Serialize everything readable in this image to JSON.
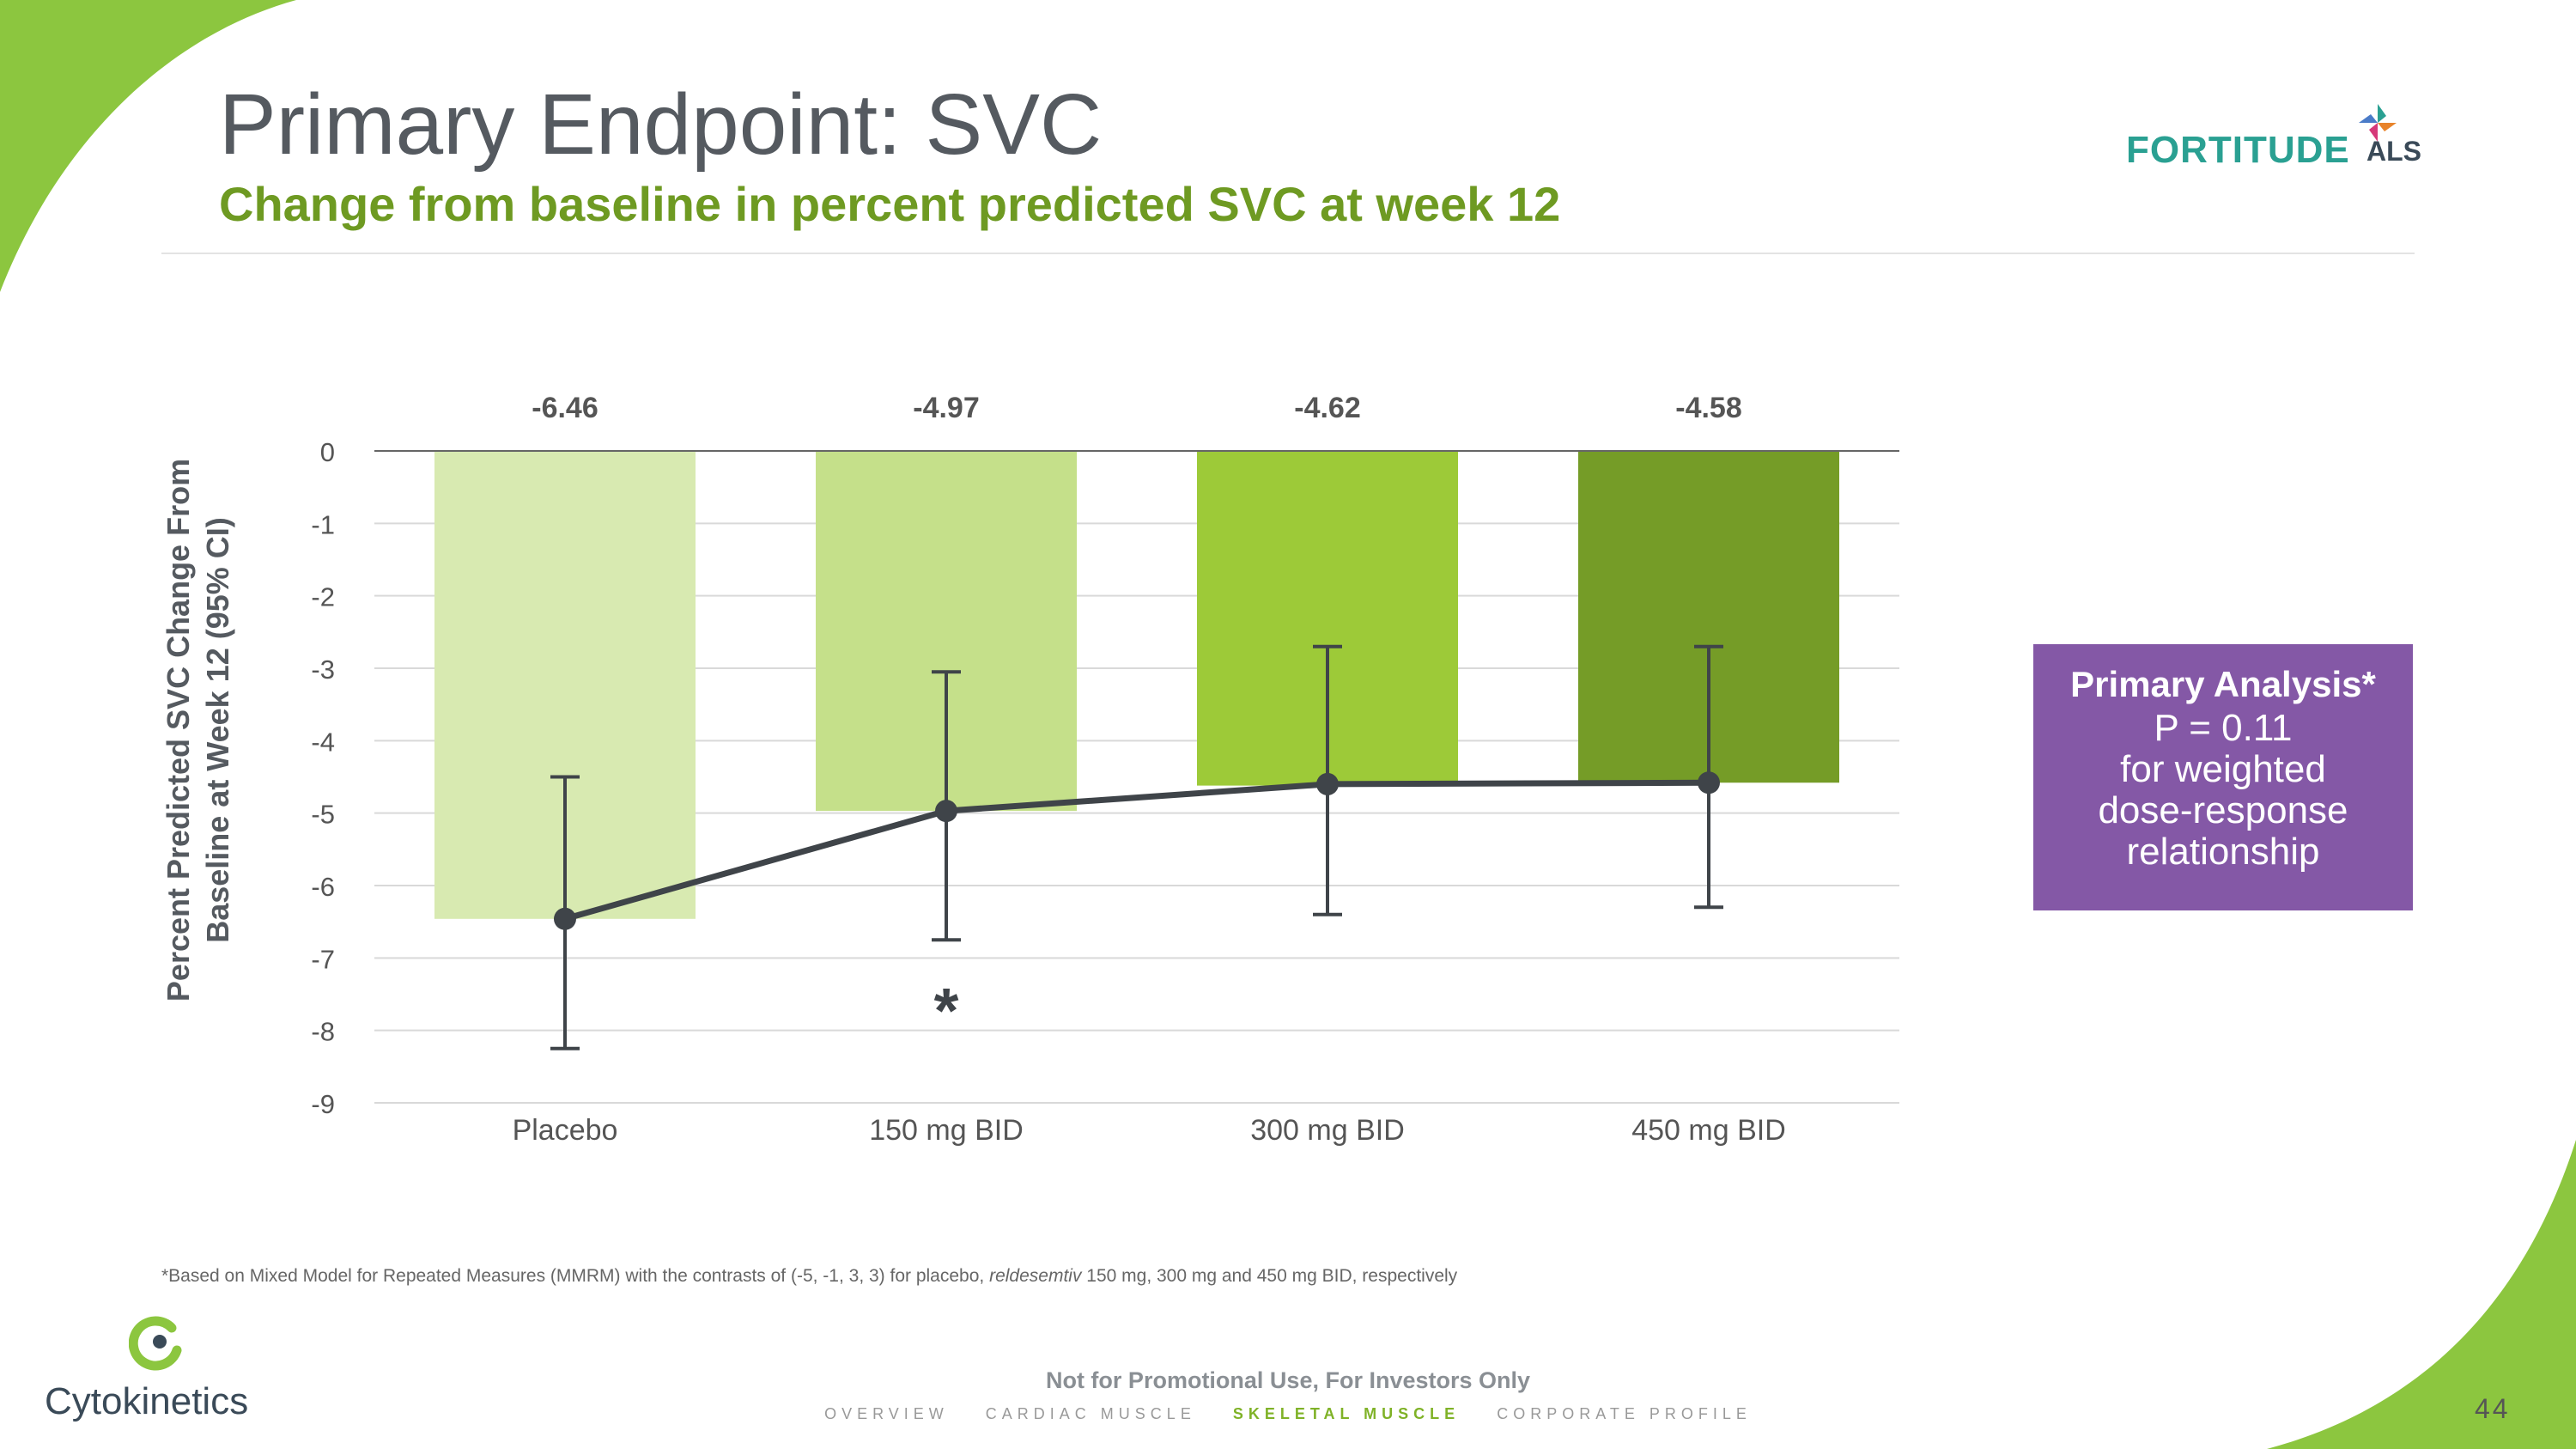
{
  "slide": {
    "title": "Primary Endpoint: SVC",
    "subtitle": "Change from baseline in percent predicted SVC at week 12",
    "brand": {
      "word": "FORTITUDE",
      "suffix": "ALS"
    },
    "company": "Cytokinetics",
    "footnote_pre": "*Based on Mixed Model for Repeated Measures (MMRM) with the contrasts of (-5, -1, 3, 3) for placebo, ",
    "footnote_drug": "reldesemtiv",
    "footnote_post": " 150 mg, 300 mg and 450 mg BID, respectively",
    "disclaimer": "Not for Promotional Use, For Investors Only",
    "nav": [
      "OVERVIEW",
      "CARDIAC MUSCLE",
      "SKELETAL MUSCLE",
      "CORPORATE PROFILE"
    ],
    "nav_active": "SKELETAL MUSCLE",
    "page_number": "44",
    "analysis_box": {
      "heading": "Primary Analysis*",
      "line1": "P = 0.11",
      "line2": "for weighted",
      "line3": "dose-response",
      "line4": "relationship"
    },
    "colors": {
      "accent_green": "#7fb227",
      "subtitle_green": "#6e9a22",
      "analysis_purple": "#8458a6",
      "teal": "#2aa092"
    }
  },
  "chart_data": {
    "type": "bar",
    "title": "",
    "ylabel": "Percent Predicted SVC Change From Baseline at Week 12 (95% CI)",
    "ylabel_lines": [
      "Percent Predicted SVC Change From",
      "Baseline at Week 12 (95% CI)"
    ],
    "xlabel": "",
    "ylim": [
      -9,
      0
    ],
    "yticks": [
      0,
      -1,
      -2,
      -3,
      -4,
      -5,
      -6,
      -7,
      -8,
      -9
    ],
    "grid": true,
    "categories": [
      "Placebo",
      "150 mg BID",
      "300 mg BID",
      "450 mg BID"
    ],
    "values": [
      -6.46,
      -4.97,
      -4.62,
      -4.58
    ],
    "value_labels": [
      "-6.46",
      "-4.97",
      "-4.62",
      "-4.58"
    ],
    "ci_upper": [
      -4.5,
      -3.05,
      -2.7,
      -2.7
    ],
    "ci_lower": [
      -8.25,
      -6.75,
      -6.4,
      -6.3
    ],
    "marker_values": [
      -6.46,
      -4.97,
      -4.6,
      -4.58
    ],
    "bar_colors": [
      "#d8eab1",
      "#c5e08a",
      "#9dca38",
      "#759c27"
    ],
    "significance_marker": {
      "category": "150 mg BID",
      "symbol": "*"
    }
  }
}
